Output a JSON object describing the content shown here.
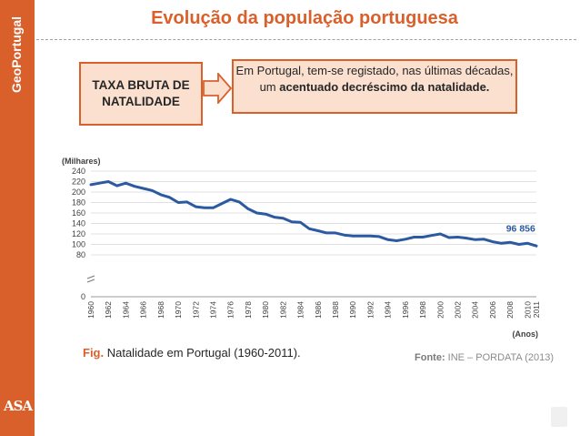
{
  "brand": "GeoPortugal",
  "publisher": "ASA",
  "title": "Evolução da população portuguesa",
  "box_left": "TAXA BRUTA DE NATALIDADE",
  "box_right": {
    "part1": "Em Portugal, tem-se registado, nas últimas décadas, um ",
    "bold": "acentuado decréscimo da natalidade.",
    "part2": ""
  },
  "caption": {
    "fig_label": "Fig.",
    "text": " Natalidade em Portugal (1960-2011)."
  },
  "source": {
    "label": "Fonte:",
    "text": " INE – PORDATA (2013)"
  },
  "colors": {
    "accent": "#d9602b",
    "box_fill": "#fbe0cf",
    "line": "#2c5aa0",
    "grid": "#e0e0e0"
  },
  "chart_data": {
    "type": "line",
    "ylabel": "(Milhares)",
    "xlabel": "(Anos)",
    "ylim": [
      0,
      240
    ],
    "yticks": [
      0,
      80,
      100,
      120,
      140,
      160,
      180,
      200,
      220,
      240
    ],
    "annotation": {
      "text": "96 856",
      "x": 2009
    },
    "x": [
      1960,
      1961,
      1962,
      1963,
      1964,
      1965,
      1966,
      1967,
      1968,
      1969,
      1970,
      1971,
      1972,
      1973,
      1974,
      1975,
      1976,
      1977,
      1978,
      1979,
      1980,
      1981,
      1982,
      1983,
      1984,
      1985,
      1986,
      1987,
      1988,
      1989,
      1990,
      1991,
      1992,
      1993,
      1994,
      1995,
      1996,
      1997,
      1998,
      1999,
      2000,
      2001,
      2002,
      2003,
      2004,
      2005,
      2006,
      2007,
      2008,
      2009,
      2010,
      2011
    ],
    "xtick_labels": [
      "1960",
      "1962",
      "1964",
      "1966",
      "1968",
      "1970",
      "1972",
      "1974",
      "1976",
      "1978",
      "1980",
      "1982",
      "1984",
      "1986",
      "1988",
      "1990",
      "1992",
      "1994",
      "1996",
      "1998",
      "2000",
      "2002",
      "2004",
      "2006",
      "2008",
      "2010",
      "2011"
    ],
    "series": [
      {
        "values": [
          214,
          217,
          220,
          212,
          217,
          211,
          207,
          203,
          195,
          190,
          180,
          181,
          172,
          170,
          170,
          178,
          186,
          181,
          168,
          160,
          158,
          152,
          150,
          143,
          142,
          130,
          126,
          122,
          122,
          118,
          116,
          116,
          116,
          115,
          109,
          107,
          110,
          114,
          114,
          117,
          120,
          113,
          114,
          112,
          109,
          110,
          105,
          102,
          104,
          100,
          102,
          97
        ]
      }
    ]
  }
}
